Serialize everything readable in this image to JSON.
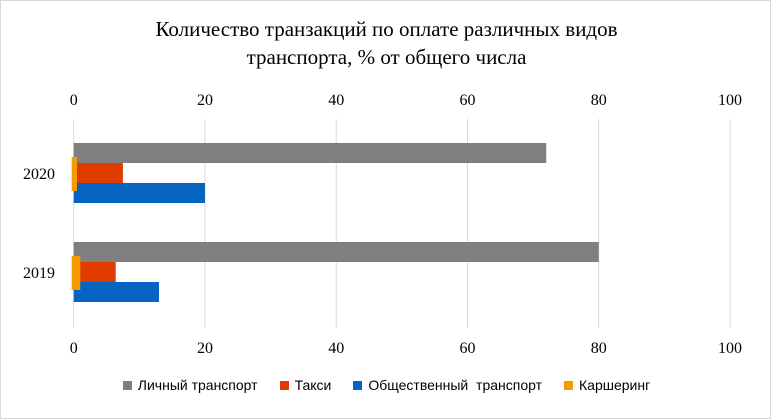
{
  "chart_data": {
    "type": "bar",
    "orientation": "horizontal",
    "title_lines": [
      "Количество транзакций по оплате различных видов",
      "транспорта, % от общего числа"
    ],
    "categories": [
      "2020",
      "2019"
    ],
    "series": [
      {
        "name": "Личный транспорт",
        "color": "#7f7f7f",
        "values": [
          72,
          80
        ]
      },
      {
        "name": "Такси",
        "color": "#e03c00",
        "values": [
          7.5,
          6.4
        ]
      },
      {
        "name": "Общественный  транспорт",
        "color": "#0563c1",
        "values": [
          20,
          13
        ]
      },
      {
        "name": "Каршеринг",
        "color": "#f59a00",
        "values": [
          0.5,
          1
        ]
      }
    ],
    "xlim": [
      0,
      100
    ],
    "xticks": [
      "0",
      "20",
      "40",
      "60",
      "80",
      "100"
    ],
    "grid": true,
    "legend": "bottom"
  }
}
